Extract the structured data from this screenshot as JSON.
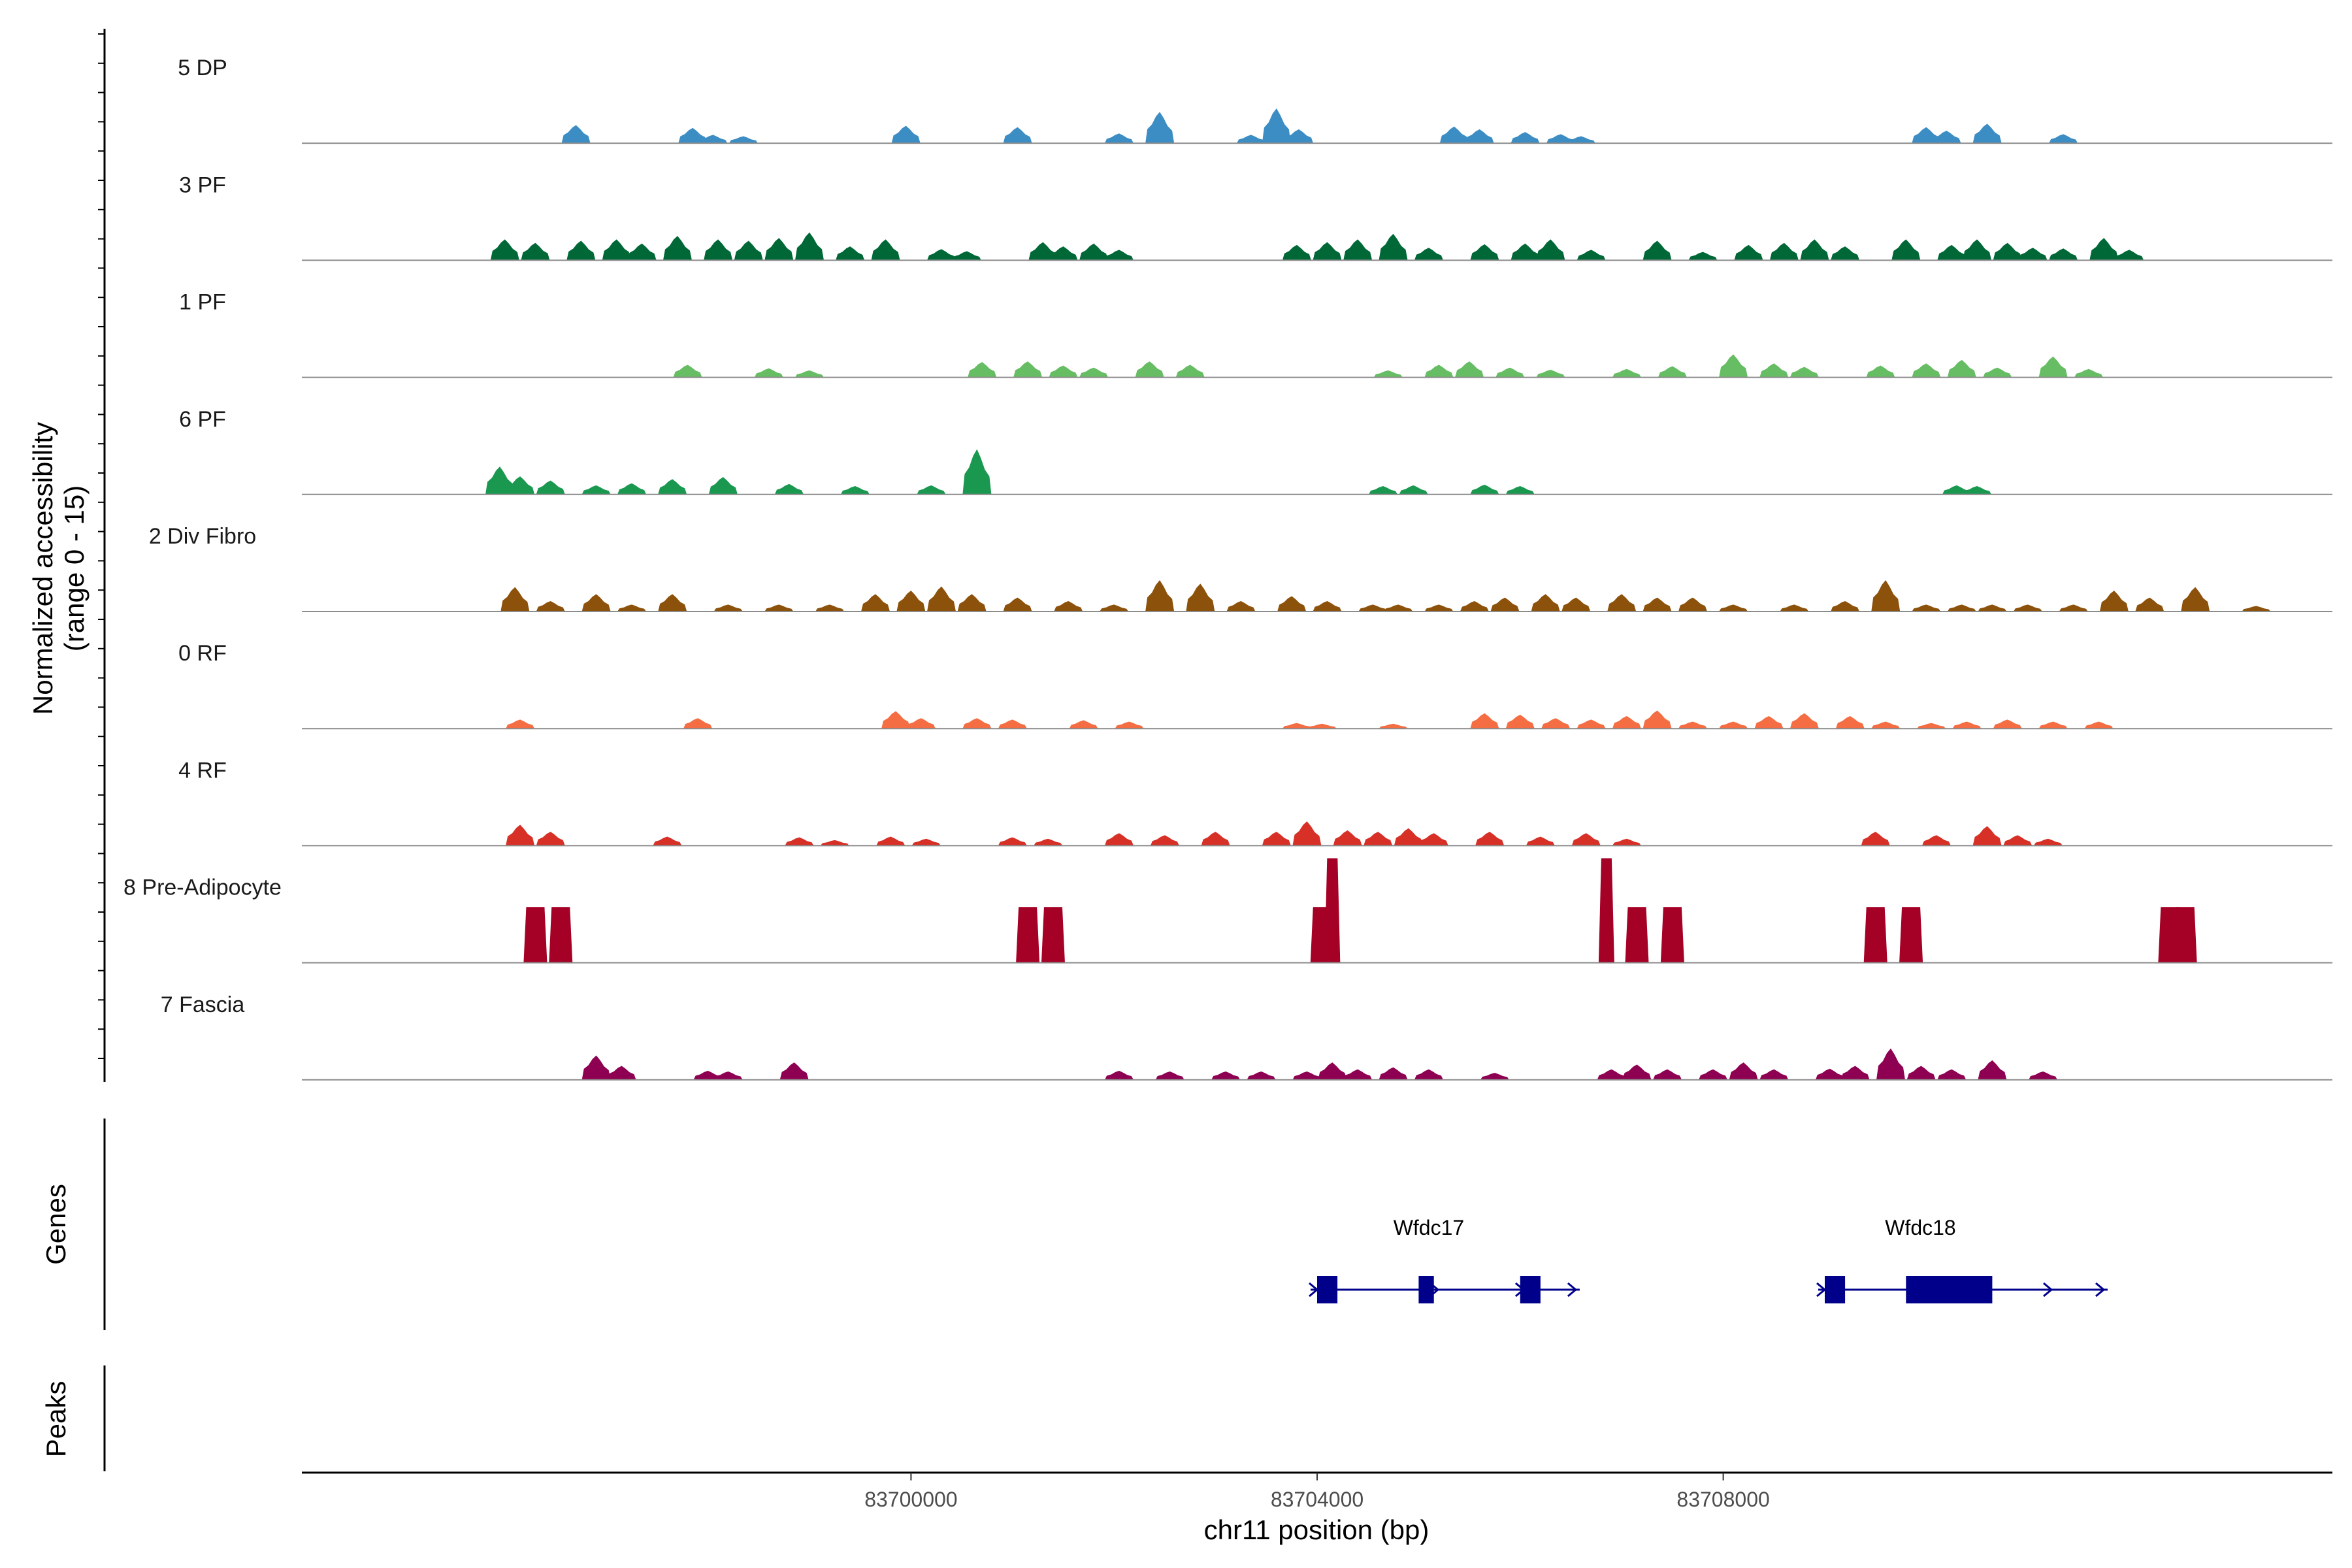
{
  "chart_data": {
    "type": "area",
    "xlabel": "chr11 position (bp)",
    "ylabel_line1": "Normalized accessibility",
    "ylabel_line2": "(range 0 - 15)",
    "ylim": [
      0,
      15
    ],
    "xlim": [
      83694000,
      83714000
    ],
    "x_ticks": [
      83700000,
      83704000,
      83708000
    ],
    "x_tick_labels": [
      "83700000",
      "83704000",
      "83708000"
    ],
    "panel_labels": {
      "genes": "Genes",
      "peaks": "Peaks"
    },
    "series": [
      {
        "name": "5 DP",
        "color": "#3C8DC4",
        "peaks": [
          [
            83696700,
            2.6
          ],
          [
            83697850,
            2.2
          ],
          [
            83698050,
            1.2
          ],
          [
            83698350,
            1.0
          ],
          [
            83699950,
            2.5
          ],
          [
            83701050,
            2.3
          ],
          [
            83702050,
            1.4
          ],
          [
            83702450,
            4.5
          ],
          [
            83703350,
            1.2
          ],
          [
            83703600,
            5.0
          ],
          [
            83703820,
            2.0
          ],
          [
            83705350,
            2.4
          ],
          [
            83705600,
            2.0
          ],
          [
            83706050,
            1.6
          ],
          [
            83706400,
            1.3
          ],
          [
            83706600,
            1.0
          ],
          [
            83710000,
            2.3
          ],
          [
            83710200,
            1.8
          ],
          [
            83710600,
            2.8
          ],
          [
            83711350,
            1.3
          ]
        ]
      },
      {
        "name": "3 PF",
        "color": "#006837",
        "peaks": [
          [
            83696000,
            3.0
          ],
          [
            83696300,
            2.5
          ],
          [
            83696750,
            2.8
          ],
          [
            83697100,
            3.0
          ],
          [
            83697350,
            2.4
          ],
          [
            83697700,
            3.5
          ],
          [
            83698100,
            3.0
          ],
          [
            83698400,
            2.8
          ],
          [
            83698700,
            3.2
          ],
          [
            83699000,
            4.0
          ],
          [
            83699400,
            2.0
          ],
          [
            83699750,
            3.0
          ],
          [
            83700300,
            1.6
          ],
          [
            83700550,
            1.3
          ],
          [
            83701300,
            2.6
          ],
          [
            83701500,
            2.0
          ],
          [
            83701800,
            2.4
          ],
          [
            83702050,
            1.5
          ],
          [
            83703800,
            2.2
          ],
          [
            83704100,
            2.6
          ],
          [
            83704400,
            3.0
          ],
          [
            83704750,
            3.8
          ],
          [
            83705100,
            1.8
          ],
          [
            83705650,
            2.3
          ],
          [
            83706050,
            2.4
          ],
          [
            83706300,
            3.0
          ],
          [
            83706700,
            1.5
          ],
          [
            83707350,
            2.8
          ],
          [
            83707800,
            1.2
          ],
          [
            83708250,
            2.2
          ],
          [
            83708600,
            2.5
          ],
          [
            83708900,
            3.0
          ],
          [
            83709200,
            2.0
          ],
          [
            83709800,
            3.0
          ],
          [
            83710250,
            2.2
          ],
          [
            83710500,
            3.0
          ],
          [
            83710800,
            2.5
          ],
          [
            83711050,
            1.8
          ],
          [
            83711350,
            1.7
          ],
          [
            83711750,
            3.2
          ],
          [
            83712000,
            1.5
          ]
        ]
      },
      {
        "name": "1 PF",
        "color": "#66BD63",
        "peaks": [
          [
            83697800,
            1.8
          ],
          [
            83698600,
            1.3
          ],
          [
            83699000,
            1.0
          ],
          [
            83700700,
            2.2
          ],
          [
            83701150,
            2.3
          ],
          [
            83701500,
            1.7
          ],
          [
            83701800,
            1.4
          ],
          [
            83702350,
            2.3
          ],
          [
            83702750,
            1.8
          ],
          [
            83704700,
            1.0
          ],
          [
            83705200,
            1.8
          ],
          [
            83705500,
            2.3
          ],
          [
            83705900,
            1.4
          ],
          [
            83706300,
            1.1
          ],
          [
            83707050,
            1.2
          ],
          [
            83707500,
            1.6
          ],
          [
            83708100,
            3.3
          ],
          [
            83708500,
            2.0
          ],
          [
            83708800,
            1.5
          ],
          [
            83709550,
            1.7
          ],
          [
            83710000,
            2.0
          ],
          [
            83710350,
            2.5
          ],
          [
            83710700,
            1.4
          ],
          [
            83711250,
            3.0
          ],
          [
            83711600,
            1.2
          ]
        ]
      },
      {
        "name": "6 PF",
        "color": "#1A9850",
        "peaks": [
          [
            83695950,
            4.0
          ],
          [
            83696150,
            2.6
          ],
          [
            83696450,
            2.0
          ],
          [
            83696900,
            1.3
          ],
          [
            83697250,
            1.6
          ],
          [
            83697650,
            2.2
          ],
          [
            83698150,
            2.5
          ],
          [
            83698800,
            1.5
          ],
          [
            83699450,
            1.2
          ],
          [
            83700200,
            1.3
          ],
          [
            83700650,
            6.5
          ],
          [
            83704650,
            1.2
          ],
          [
            83704950,
            1.3
          ],
          [
            83705650,
            1.4
          ],
          [
            83706000,
            1.2
          ],
          [
            83710300,
            1.3
          ],
          [
            83710500,
            1.2
          ]
        ]
      },
      {
        "name": "2 Div Fibro",
        "color": "#8C510A",
        "peaks": [
          [
            83696100,
            3.5
          ],
          [
            83696450,
            1.5
          ],
          [
            83696900,
            2.5
          ],
          [
            83697250,
            1.0
          ],
          [
            83697650,
            2.5
          ],
          [
            83698200,
            1.0
          ],
          [
            83698700,
            1.0
          ],
          [
            83699200,
            1.0
          ],
          [
            83699650,
            2.5
          ],
          [
            83700000,
            3.0
          ],
          [
            83700300,
            3.6
          ],
          [
            83700600,
            2.5
          ],
          [
            83701050,
            2.0
          ],
          [
            83701550,
            1.5
          ],
          [
            83702000,
            1.0
          ],
          [
            83702450,
            4.5
          ],
          [
            83702850,
            4.0
          ],
          [
            83703250,
            1.5
          ],
          [
            83703750,
            2.2
          ],
          [
            83704100,
            1.5
          ],
          [
            83704550,
            1.0
          ],
          [
            83704800,
            1.0
          ],
          [
            83705200,
            1.0
          ],
          [
            83705550,
            1.5
          ],
          [
            83705850,
            2.0
          ],
          [
            83706250,
            2.5
          ],
          [
            83706550,
            2.0
          ],
          [
            83707000,
            2.5
          ],
          [
            83707350,
            2.0
          ],
          [
            83707700,
            2.0
          ],
          [
            83708100,
            1.0
          ],
          [
            83708700,
            1.0
          ],
          [
            83709200,
            1.5
          ],
          [
            83709600,
            4.5
          ],
          [
            83710000,
            1.0
          ],
          [
            83710350,
            1.0
          ],
          [
            83710650,
            1.0
          ],
          [
            83711000,
            1.0
          ],
          [
            83711450,
            1.0
          ],
          [
            83711850,
            3.0
          ],
          [
            83712200,
            2.0
          ],
          [
            83712650,
            3.5
          ],
          [
            83713250,
            0.8
          ]
        ]
      },
      {
        "name": "0 RF",
        "color": "#F46D43",
        "peaks": [
          [
            83696150,
            1.3
          ],
          [
            83697900,
            1.5
          ],
          [
            83699850,
            2.5
          ],
          [
            83700100,
            1.5
          ],
          [
            83700650,
            1.5
          ],
          [
            83701000,
            1.3
          ],
          [
            83701700,
            1.2
          ],
          [
            83702150,
            1.0
          ],
          [
            83703800,
            0.8
          ],
          [
            83704050,
            0.7
          ],
          [
            83704750,
            0.7
          ],
          [
            83705650,
            2.2
          ],
          [
            83706000,
            2.0
          ],
          [
            83706350,
            1.5
          ],
          [
            83706700,
            1.3
          ],
          [
            83707050,
            1.8
          ],
          [
            83707350,
            2.6
          ],
          [
            83707700,
            1.0
          ],
          [
            83708100,
            1.0
          ],
          [
            83708450,
            1.8
          ],
          [
            83708800,
            2.2
          ],
          [
            83709250,
            1.8
          ],
          [
            83709600,
            1.0
          ],
          [
            83710050,
            0.8
          ],
          [
            83710400,
            1.0
          ],
          [
            83710800,
            1.3
          ],
          [
            83711250,
            1.0
          ],
          [
            83711700,
            1.0
          ]
        ]
      },
      {
        "name": "4 RF",
        "color": "#D73027",
        "peaks": [
          [
            83696150,
            3.0
          ],
          [
            83696450,
            2.0
          ],
          [
            83697600,
            1.3
          ],
          [
            83698900,
            1.2
          ],
          [
            83699250,
            0.8
          ],
          [
            83699800,
            1.3
          ],
          [
            83700150,
            1.0
          ],
          [
            83701000,
            1.2
          ],
          [
            83701350,
            1.0
          ],
          [
            83702050,
            1.8
          ],
          [
            83702500,
            1.5
          ],
          [
            83703000,
            2.0
          ],
          [
            83703600,
            2.0
          ],
          [
            83703900,
            3.5
          ],
          [
            83704300,
            2.2
          ],
          [
            83704600,
            2.0
          ],
          [
            83704900,
            2.5
          ],
          [
            83705150,
            1.8
          ],
          [
            83705700,
            2.0
          ],
          [
            83706200,
            1.3
          ],
          [
            83706650,
            1.8
          ],
          [
            83707050,
            1.0
          ],
          [
            83709500,
            2.0
          ],
          [
            83710100,
            1.5
          ],
          [
            83710600,
            2.8
          ],
          [
            83710900,
            1.5
          ],
          [
            83711200,
            1.0
          ]
        ]
      },
      {
        "name": "8 Pre-Adipocyte",
        "color": "#A50026",
        "peaks": [
          [
            83696300,
            8.0
          ],
          [
            83696550,
            8.0
          ],
          [
            83701150,
            8.0
          ],
          [
            83701400,
            8.0
          ],
          [
            83704050,
            8.0
          ],
          [
            83704150,
            15.0
          ],
          [
            83706850,
            15.0
          ],
          [
            83707150,
            8.0
          ],
          [
            83707500,
            8.0
          ],
          [
            83709500,
            8.0
          ],
          [
            83709850,
            8.0
          ],
          [
            83712400,
            8.0
          ],
          [
            83712550,
            8.0
          ]
        ]
      },
      {
        "name": "7 Fascia",
        "color": "#8E0152",
        "peaks": [
          [
            83696900,
            3.5
          ],
          [
            83697150,
            2.0
          ],
          [
            83698000,
            1.3
          ],
          [
            83698200,
            1.2
          ],
          [
            83698850,
            2.5
          ],
          [
            83702050,
            1.3
          ],
          [
            83702550,
            1.2
          ],
          [
            83703100,
            1.2
          ],
          [
            83703450,
            1.2
          ],
          [
            83703900,
            1.2
          ],
          [
            83704150,
            2.5
          ],
          [
            83704400,
            1.5
          ],
          [
            83704750,
            1.8
          ],
          [
            83705100,
            1.5
          ],
          [
            83705750,
            1.0
          ],
          [
            83706900,
            1.5
          ],
          [
            83707150,
            2.2
          ],
          [
            83707450,
            1.5
          ],
          [
            83707900,
            1.5
          ],
          [
            83708200,
            2.5
          ],
          [
            83708500,
            1.5
          ],
          [
            83709050,
            1.6
          ],
          [
            83709300,
            2.0
          ],
          [
            83709650,
            4.5
          ],
          [
            83709950,
            2.0
          ],
          [
            83710250,
            1.5
          ],
          [
            83710650,
            2.8
          ],
          [
            83711150,
            1.2
          ]
        ]
      }
    ],
    "genes": [
      {
        "name": "Wfdc17",
        "start": 83704000,
        "end": 83706200,
        "strand": "+",
        "exons": [
          [
            83704000,
            83704200
          ],
          [
            83705000,
            83705150
          ],
          [
            83706000,
            83706200
          ]
        ]
      },
      {
        "name": "Wfdc18",
        "start": 83709000,
        "end": 83711400,
        "strand": "+",
        "exons": [
          [
            83709000,
            83709200
          ],
          [
            83709800,
            83710650
          ]
        ]
      }
    ],
    "peaks_track": []
  }
}
